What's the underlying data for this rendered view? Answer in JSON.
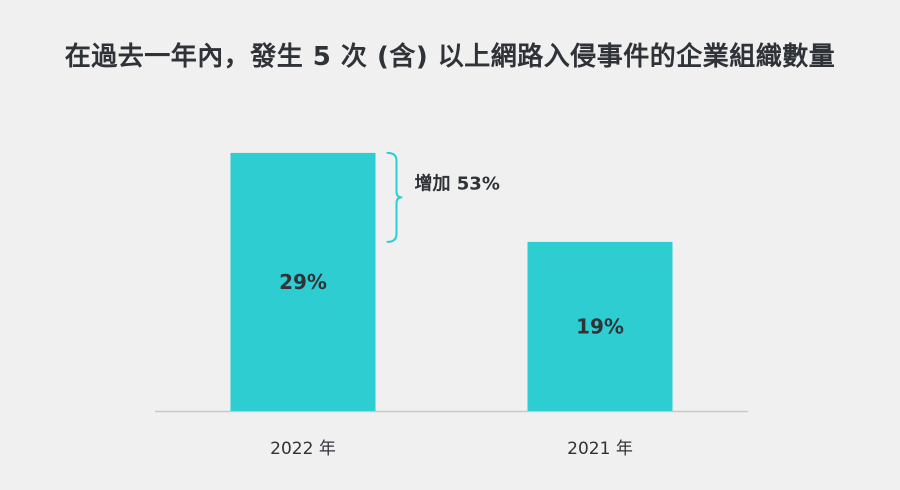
{
  "chart_data": {
    "type": "bar",
    "title": "在過去一年內，發生 5 次 (含) 以上網路入侵事件的企業組織數量",
    "categories": [
      "2022 年",
      "2021 年"
    ],
    "values": [
      29,
      19
    ],
    "data_labels": [
      "29%",
      "19%"
    ],
    "ylim": [
      0,
      30
    ],
    "xlabel": "",
    "ylabel": "",
    "grid": false,
    "annotation": {
      "text": "增加 53%",
      "between": [
        "2022 年",
        "2021 年"
      ]
    },
    "colors": {
      "bar": "#2ecdd2",
      "bracket": "#2ecdd2",
      "axis": "#c8c8c8",
      "text": "#2f3338",
      "background": "#f0f0f0"
    }
  }
}
